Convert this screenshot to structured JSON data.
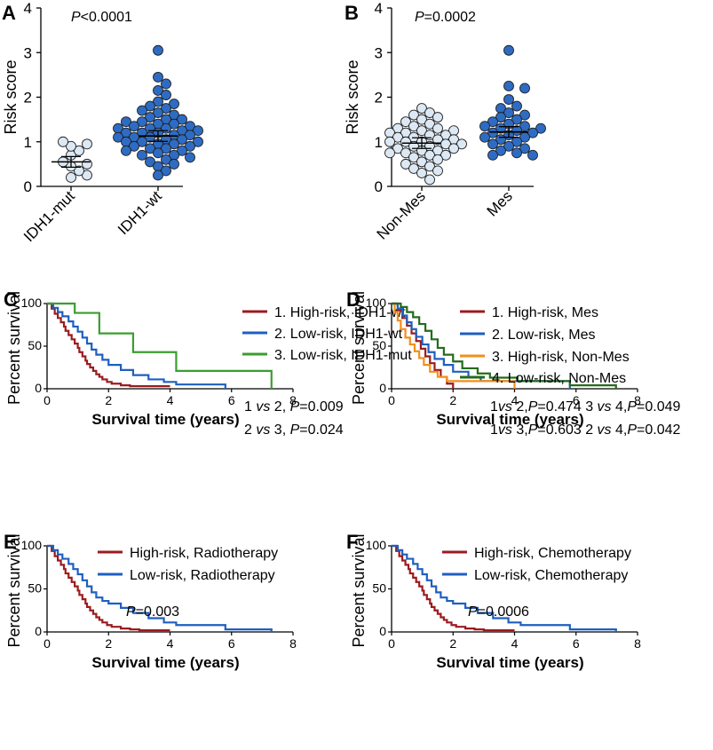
{
  "colors": {
    "darkred": "#9B1B1F",
    "blue": "#1F5FBF",
    "green": "#3A9E2E",
    "orange": "#F28E1C",
    "darkgreen": "#256B1D",
    "light_dot": "#DCE8F4",
    "dark_dot": "#2E6CC4"
  },
  "chart_data": [
    {
      "id": "A",
      "type": "scatter",
      "panel_label": "A",
      "ylabel": "Risk score",
      "ylim": [
        0,
        4
      ],
      "yticks": [
        "0",
        "1",
        "2",
        "3",
        "4"
      ],
      "categories": [
        "IDH1-mut",
        "IDH1-wt"
      ],
      "annotation": {
        "italic": "P",
        "rest": "<0.0001"
      },
      "series": [
        {
          "name": "IDH1-mut",
          "mean": 0.55,
          "values": [
            0.2,
            0.25,
            0.35,
            0.45,
            0.5,
            0.55,
            0.7,
            0.8,
            0.9,
            0.95,
            1.0
          ]
        },
        {
          "name": "IDH1-wt",
          "mean": 1.13,
          "values": [
            3.05,
            2.45,
            2.3,
            2.15,
            2.05,
            1.9,
            1.85,
            1.8,
            1.75,
            1.7,
            1.65,
            1.6,
            1.55,
            1.5,
            1.5,
            1.45,
            1.45,
            1.4,
            1.4,
            1.35,
            1.35,
            1.3,
            1.3,
            1.3,
            1.25,
            1.25,
            1.2,
            1.2,
            1.2,
            1.15,
            1.15,
            1.1,
            1.1,
            1.1,
            1.05,
            1.05,
            1.0,
            1.0,
            1.0,
            0.95,
            0.95,
            0.9,
            0.9,
            0.85,
            0.85,
            0.8,
            0.8,
            0.75,
            0.7,
            0.7,
            0.65,
            0.6,
            0.55,
            0.5,
            0.45,
            0.35,
            0.25
          ]
        }
      ]
    },
    {
      "id": "B",
      "type": "scatter",
      "panel_label": "B",
      "ylabel": "Risk score",
      "ylim": [
        0,
        4
      ],
      "yticks": [
        "0",
        "1",
        "2",
        "3",
        "4"
      ],
      "categories": [
        "Non-Mes",
        "Mes"
      ],
      "annotation": {
        "italic": "P",
        "rest": "=0.0002"
      },
      "series": [
        {
          "name": "Non-Mes",
          "mean": 0.97,
          "values": [
            1.75,
            1.65,
            1.6,
            1.55,
            1.5,
            1.45,
            1.4,
            1.35,
            1.3,
            1.3,
            1.25,
            1.25,
            1.2,
            1.2,
            1.15,
            1.15,
            1.1,
            1.1,
            1.05,
            1.05,
            1.0,
            1.0,
            1.0,
            0.95,
            0.95,
            0.9,
            0.9,
            0.85,
            0.85,
            0.8,
            0.8,
            0.75,
            0.75,
            0.7,
            0.7,
            0.65,
            0.6,
            0.55,
            0.5,
            0.45,
            0.4,
            0.35,
            0.3,
            0.15
          ]
        },
        {
          "name": "Mes",
          "mean": 1.22,
          "values": [
            3.05,
            2.25,
            2.2,
            1.95,
            1.8,
            1.75,
            1.65,
            1.6,
            1.55,
            1.5,
            1.45,
            1.4,
            1.35,
            1.35,
            1.3,
            1.3,
            1.25,
            1.2,
            1.2,
            1.15,
            1.1,
            1.1,
            1.05,
            1.0,
            0.95,
            0.9,
            0.85,
            0.8,
            0.75,
            0.7,
            0.7
          ]
        }
      ]
    },
    {
      "id": "C",
      "type": "line",
      "panel_label": "C",
      "xlabel": "Survival time (years)",
      "ylabel": "Percent survival",
      "xlim": [
        0,
        8
      ],
      "ylim": [
        0,
        100
      ],
      "xticks": [
        "0",
        "2",
        "4",
        "6",
        "8"
      ],
      "yticks": [
        "0",
        "50",
        "100"
      ],
      "legend": [
        "1. High-risk,  IDH1-wt",
        "2. Low-risk,  IDH1-wt",
        "3. Low-risk,  IDH1-mut"
      ],
      "annotations": [
        {
          "pre": "1 ",
          "italic": "vs",
          "mid": " 2, ",
          "italic2": "P",
          "post": "=0.009"
        },
        {
          "pre": "2 ",
          "italic": "vs",
          "mid": " 3, ",
          "italic2": "P",
          "post": "=0.024"
        }
      ],
      "series": [
        {
          "name": "1. High-risk, IDH1-wt",
          "color": "#9B1B1F",
          "x": [
            0,
            0.15,
            0.25,
            0.35,
            0.45,
            0.55,
            0.6,
            0.7,
            0.8,
            0.9,
            1.0,
            1.05,
            1.15,
            1.25,
            1.3,
            1.4,
            1.5,
            1.6,
            1.7,
            1.8,
            1.95,
            2.1,
            2.4,
            2.7,
            3.0,
            4.0
          ],
          "y": [
            100,
            94,
            88,
            83,
            78,
            73,
            68,
            63,
            58,
            53,
            48,
            43,
            38,
            33,
            29,
            25,
            21,
            17,
            14,
            11,
            8,
            6,
            4,
            3,
            3,
            3
          ]
        },
        {
          "name": "2. Low-risk, IDH1-wt",
          "color": "#1F5FBF",
          "x": [
            0,
            0.2,
            0.35,
            0.5,
            0.7,
            0.85,
            1.0,
            1.15,
            1.3,
            1.45,
            1.6,
            1.8,
            2.0,
            2.4,
            2.8,
            3.3,
            3.8,
            4.2,
            5.8
          ],
          "y": [
            100,
            95,
            90,
            85,
            79,
            73,
            67,
            60,
            53,
            46,
            40,
            34,
            28,
            22,
            16,
            11,
            8,
            5,
            0
          ]
        },
        {
          "name": "3. Low-risk, IDH1-mut",
          "color": "#3A9E2E",
          "x": [
            0,
            0.9,
            1.7,
            2.8,
            4.2,
            7.3
          ],
          "y": [
            100,
            89,
            65,
            43,
            21,
            0
          ]
        }
      ]
    },
    {
      "id": "D",
      "type": "line",
      "panel_label": "D",
      "xlabel": "Survival time (years)",
      "ylabel": "Percent survival",
      "xlim": [
        0,
        8
      ],
      "ylim": [
        0,
        100
      ],
      "xticks": [
        "0",
        "2",
        "4",
        "6",
        "8"
      ],
      "yticks": [
        "0",
        "50",
        "100"
      ],
      "legend": [
        "1. High-risk,  Mes",
        "2. Low-risk,  Mes",
        "3. High-risk,  Non-Mes",
        "4. Low-risk,  Non-Mes"
      ],
      "annotations": [
        {
          "pre": "1",
          "italic": "vs",
          "mid": " 2,",
          "italic2": "P",
          "post": "=0.474   3 ",
          "italic3": "vs",
          "post2": " 4,",
          "italic4": "P",
          "post3": "=0.049"
        },
        {
          "pre": "1",
          "italic": "vs",
          "mid": " 3,",
          "italic2": "P",
          "post": "=0.603   2 ",
          "italic3": "vs",
          "post2": " 4,",
          "italic4": "P",
          "post3": "=0.042"
        }
      ],
      "series": [
        {
          "name": "1. High-risk, Mes",
          "color": "#9B1B1F",
          "x": [
            0,
            0.2,
            0.35,
            0.5,
            0.65,
            0.8,
            0.95,
            1.1,
            1.25,
            1.4,
            1.6,
            1.8,
            2.0
          ],
          "y": [
            100,
            92,
            83,
            74,
            65,
            56,
            47,
            38,
            30,
            22,
            14,
            6,
            0
          ]
        },
        {
          "name": "2. Low-risk, Mes",
          "color": "#1F5FBF",
          "x": [
            0,
            0.2,
            0.35,
            0.5,
            0.65,
            0.8,
            1.0,
            1.2,
            1.4,
            1.7,
            2.0,
            2.5,
            2.9,
            5.8
          ],
          "y": [
            100,
            94,
            86,
            78,
            70,
            61,
            52,
            43,
            35,
            28,
            20,
            14,
            9,
            0
          ]
        },
        {
          "name": "3. High-risk, Non-Mes",
          "color": "#F28E1C",
          "x": [
            0,
            0.1,
            0.2,
            0.3,
            0.45,
            0.6,
            0.75,
            0.9,
            1.05,
            1.25,
            1.5,
            1.8,
            2.2,
            4.0
          ],
          "y": [
            100,
            90,
            80,
            70,
            60,
            52,
            44,
            36,
            28,
            20,
            14,
            9,
            9,
            0
          ]
        },
        {
          "name": "4. Low-risk, Non-Mes",
          "color": "#256B1D",
          "x": [
            0,
            0.3,
            0.5,
            0.7,
            0.9,
            1.1,
            1.3,
            1.5,
            1.7,
            2.0,
            2.3,
            2.8,
            3.2,
            4.1,
            5.8,
            7.3
          ],
          "y": [
            100,
            96,
            90,
            84,
            76,
            68,
            58,
            48,
            40,
            32,
            24,
            18,
            13,
            9,
            4,
            0
          ]
        }
      ]
    },
    {
      "id": "E",
      "type": "line",
      "panel_label": "E",
      "xlabel": "Survival time (years)",
      "ylabel": "Percent survival",
      "xlim": [
        0,
        8
      ],
      "ylim": [
        0,
        100
      ],
      "xticks": [
        "0",
        "2",
        "4",
        "6",
        "8"
      ],
      "yticks": [
        "0",
        "50",
        "100"
      ],
      "legend": [
        "High-risk,  Radiotherapy",
        "Low-risk,  Radiotherapy"
      ],
      "annotations": [
        {
          "pre": "",
          "italic": "P",
          "mid": "=0.003"
        }
      ],
      "series": [
        {
          "name": "High-risk, Radiotherapy",
          "color": "#9B1B1F",
          "x": [
            0,
            0.15,
            0.25,
            0.35,
            0.45,
            0.55,
            0.6,
            0.7,
            0.8,
            0.9,
            1.0,
            1.05,
            1.15,
            1.25,
            1.3,
            1.4,
            1.5,
            1.6,
            1.7,
            1.8,
            1.95,
            2.1,
            2.4,
            2.7,
            3.0,
            4.0
          ],
          "y": [
            100,
            94,
            88,
            83,
            78,
            73,
            68,
            63,
            58,
            53,
            48,
            43,
            38,
            33,
            29,
            25,
            21,
            17,
            14,
            11,
            8,
            6,
            4,
            3,
            2,
            2
          ]
        },
        {
          "name": "Low-risk, Radiotherapy",
          "color": "#1F5FBF",
          "x": [
            0,
            0.2,
            0.35,
            0.5,
            0.7,
            0.85,
            1.0,
            1.15,
            1.3,
            1.45,
            1.6,
            1.8,
            2.0,
            2.4,
            2.8,
            3.3,
            3.8,
            4.2,
            5.8,
            7.3
          ],
          "y": [
            100,
            95,
            90,
            85,
            79,
            73,
            67,
            60,
            53,
            46,
            40,
            36,
            33,
            28,
            22,
            16,
            11,
            8,
            3,
            0
          ]
        }
      ]
    },
    {
      "id": "F",
      "type": "line",
      "panel_label": "F",
      "xlabel": "Survival time (years)",
      "ylabel": "Percent survival",
      "xlim": [
        0,
        8
      ],
      "ylim": [
        0,
        100
      ],
      "xticks": [
        "0",
        "2",
        "4",
        "6",
        "8"
      ],
      "yticks": [
        "0",
        "50",
        "100"
      ],
      "legend": [
        "High-risk,  Chemotherapy",
        "Low-risk,  Chemotherapy"
      ],
      "annotations": [
        {
          "pre": "",
          "italic": "P",
          "mid": "=0.0006"
        }
      ],
      "series": [
        {
          "name": "High-risk, Chemotherapy",
          "color": "#9B1B1F",
          "x": [
            0,
            0.15,
            0.25,
            0.35,
            0.45,
            0.55,
            0.6,
            0.7,
            0.8,
            0.9,
            1.0,
            1.05,
            1.15,
            1.25,
            1.3,
            1.4,
            1.5,
            1.6,
            1.7,
            1.8,
            1.95,
            2.1,
            2.4,
            2.7,
            3.0,
            4.0
          ],
          "y": [
            100,
            94,
            88,
            83,
            78,
            73,
            68,
            63,
            58,
            53,
            48,
            43,
            38,
            33,
            29,
            25,
            21,
            17,
            14,
            11,
            8,
            6,
            4,
            3,
            2,
            2
          ]
        },
        {
          "name": "Low-risk, Chemotherapy",
          "color": "#1F5FBF",
          "x": [
            0,
            0.2,
            0.35,
            0.5,
            0.7,
            0.85,
            1.0,
            1.15,
            1.3,
            1.45,
            1.6,
            1.8,
            2.0,
            2.4,
            2.8,
            3.3,
            3.8,
            4.2,
            5.8,
            7.3
          ],
          "y": [
            100,
            95,
            90,
            85,
            79,
            73,
            67,
            60,
            53,
            46,
            40,
            36,
            33,
            28,
            22,
            16,
            11,
            8,
            3,
            0
          ]
        }
      ]
    }
  ]
}
